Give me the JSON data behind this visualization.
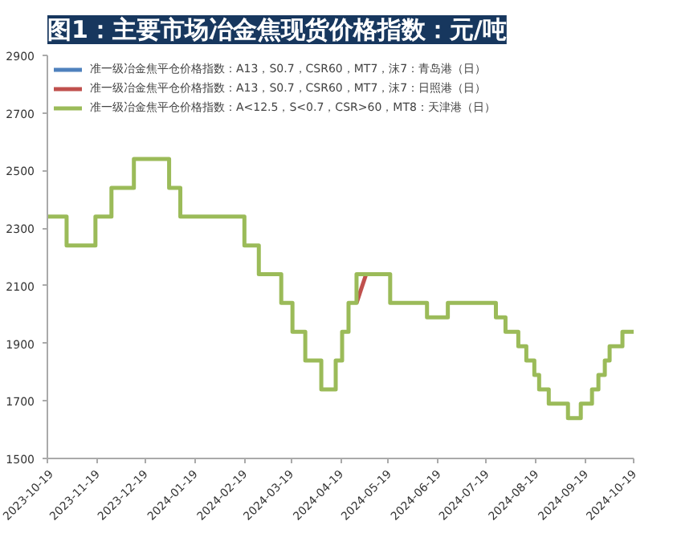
{
  "chart_data": {
    "type": "step",
    "title": "图1：主要市场冶金焦现货价格指数：元/吨",
    "ylim": [
      1500,
      2900
    ],
    "yticks": [
      1500,
      1700,
      1900,
      2100,
      2300,
      2500,
      2700,
      2900
    ],
    "xlim": [
      "2023-10-19",
      "2024-10-19"
    ],
    "xticks": [
      "2023-10-19",
      "2023-11-19",
      "2023-12-19",
      "2024-01-19",
      "2024-02-19",
      "2024-03-19",
      "2024-04-19",
      "2024-05-19",
      "2024-06-19",
      "2024-07-19",
      "2024-08-19",
      "2024-09-19",
      "2024-10-19"
    ],
    "grid": false,
    "legend": "top left",
    "series": [
      {
        "name": "准一级冶金焦平仓价格指数：A13，S0.7，CSR60，MT7，沫7：青岛港（日）",
        "color": "#4f81bd"
      },
      {
        "name": "准一级冶金焦平仓价格指数：A13，S0.7，CSR60，MT7，沫7：日照港（日）",
        "color": "#c0504d",
        "type": "line",
        "x": [
          "2024-04-29",
          "2024-05-05"
        ],
        "values": [
          2040,
          2140
        ]
      },
      {
        "name": "准一级冶金焦平仓价格指数：A<12.5，S<0.7，CSR>60，MT8：天津港（日）",
        "color": "#9bbb59",
        "x": [
          "2023-10-19",
          "2023-10-31",
          "2023-11-18",
          "2023-11-28",
          "2023-12-12",
          "2024-01-03",
          "2024-01-10",
          "2024-02-19",
          "2024-02-28",
          "2024-03-13",
          "2024-03-20",
          "2024-03-28",
          "2024-04-07",
          "2024-04-16",
          "2024-04-20",
          "2024-04-24",
          "2024-04-29",
          "2024-05-20",
          "2024-06-12",
          "2024-06-25",
          "2024-07-25",
          "2024-07-31",
          "2024-08-08",
          "2024-08-13",
          "2024-08-18",
          "2024-08-21",
          "2024-08-27",
          "2024-09-08",
          "2024-09-16",
          "2024-09-23",
          "2024-09-27",
          "2024-10-01",
          "2024-10-04",
          "2024-10-12",
          "2024-10-19"
        ],
        "values": [
          2340,
          2240,
          2340,
          2440,
          2540,
          2440,
          2340,
          2240,
          2140,
          2040,
          1940,
          1840,
          1740,
          1840,
          1940,
          2040,
          2140,
          2040,
          1990,
          2040,
          1990,
          1940,
          1890,
          1840,
          1790,
          1740,
          1690,
          1640,
          1690,
          1740,
          1790,
          1840,
          1890,
          1940,
          1940
        ]
      }
    ]
  }
}
